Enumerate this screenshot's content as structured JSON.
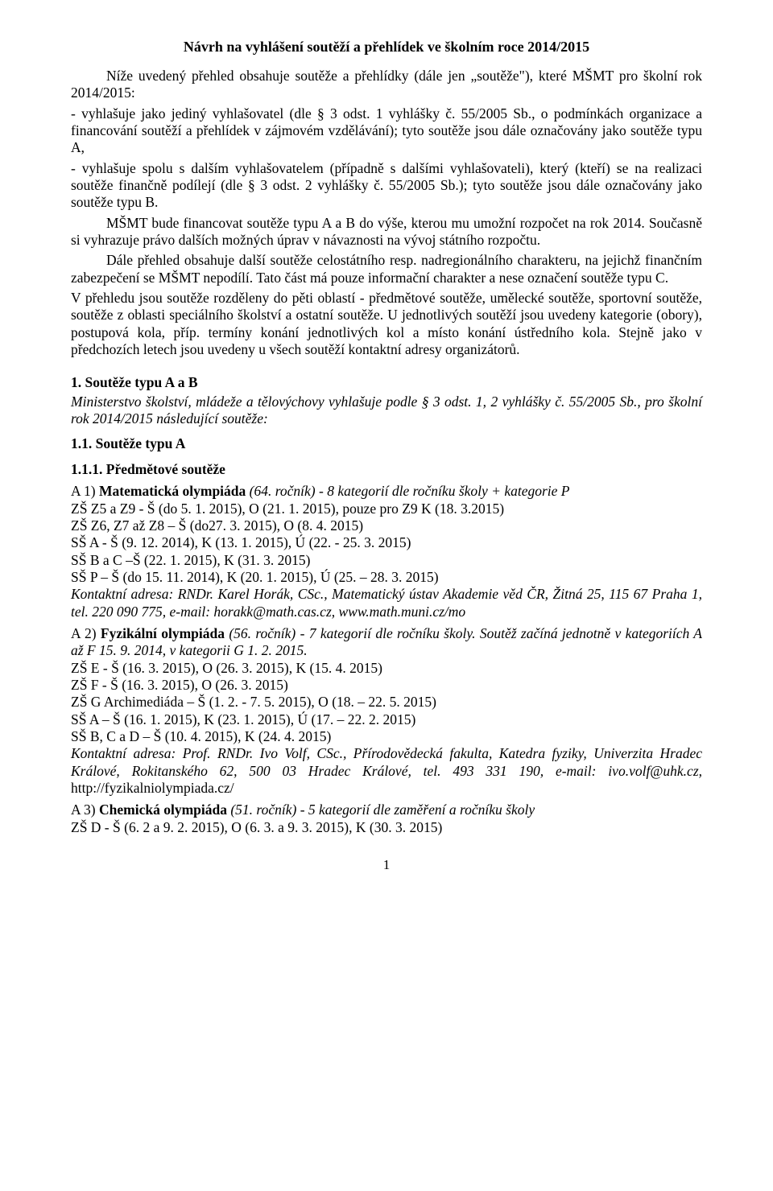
{
  "title": "Návrh na vyhlášení soutěží a přehlídek ve školním roce 2014/2015",
  "intro_p1": "Níže uvedený přehled obsahuje soutěže a přehlídky (dále jen „soutěže\"), které MŠMT pro školní rok 2014/2015:",
  "intro_p2": "- vyhlašuje jako jediný vyhlašovatel (dle § 3 odst. 1 vyhlášky č. 55/2005 Sb., o podmínkách organizace a financování soutěží a přehlídek v zájmovém vzdělávání); tyto soutěže jsou dále označovány jako soutěže typu A,",
  "intro_p3": "- vyhlašuje spolu s dalším vyhlašovatelem (případně s dalšími vyhlašovateli), který (kteří) se na realizaci soutěže finančně podílejí (dle § 3 odst. 2 vyhlášky č. 55/2005 Sb.); tyto soutěže jsou dále označovány jako soutěže typu B.",
  "intro_p4": "MŠMT bude financovat soutěže typu A a B do výše, kterou mu umožní rozpočet na rok 2014. Současně si vyhrazuje právo dalších možných úprav v návaznosti na vývoj státního rozpočtu.",
  "intro_p5": "Dále přehled obsahuje další soutěže celostátního resp. nadregionálního charakteru, na jejichž finančním zabezpečení se MŠMT nepodílí. Tato část má pouze informační charakter a nese označení soutěže typu C.",
  "intro_p6": "V přehledu jsou soutěže rozděleny do pěti oblastí - předmětové soutěže, umělecké soutěže, sportovní soutěže, soutěže z oblasti speciálního školství a ostatní soutěže. U jednotlivých soutěží jsou uvedeny kategorie (obory), postupová kola, příp. termíny konání jednotlivých kol a místo konání ústředního kola. Stejně jako v předchozích letech jsou uvedeny u všech soutěží kontaktní adresy organizátorů.",
  "s1_head": "1. Soutěže typu A a B",
  "s1_sub": "Ministerstvo školství, mládeže a tělovýchovy vyhlašuje podle § 3 odst. 1, 2 vyhlášky č. 55/2005 Sb., pro školní rok 2014/2015 následující soutěže:",
  "s11_head": "1.1.   Soutěže typu A",
  "s111_head": "1.1.1. Předmětové soutěže",
  "a1_lead": "A 1) ",
  "a1_bold": "Matematická olympiáda",
  "a1_rest": " (64. ročník) - 8 kategorií dle ročníku školy + kategorie P",
  "a1_l1": "ZŠ  Z5 a Z9 - Š (do 5. 1. 2015), O (21. 1. 2015), pouze pro Z9 K (18. 3.2015)",
  "a1_l2": "ZŠ  Z6, Z7 až Z8 – Š (do27. 3. 2015), O (8. 4. 2015)",
  "a1_l3": "SŠ A - Š (9. 12. 2014), K (13. 1. 2015), Ú (22. - 25. 3. 2015)",
  "a1_l4": "SŠ B a C –Š (22. 1. 2015), K (31. 3. 2015)",
  "a1_l5": "SŠ P – Š (do 15. 11. 2014), K (20. 1. 2015), Ú (25. – 28. 3. 2015)",
  "a1_contact": "Kontaktní adresa: RNDr. Karel Horák, CSc., Matematický ústav Akademie věd ČR, Žitná 25, 115 67 Praha 1, tel. 220 090 775, e-mail: horakk@math.cas.cz, www.math.muni.cz/mo",
  "a2_lead": "A 2) ",
  "a2_bold": "Fyzikální olympiáda",
  "a2_rest": " (56. ročník) - 7 kategorií dle ročníku školy. Soutěž začíná jednotně v kategoriích A až F 15. 9. 2014, v kategorii G 1. 2. 2015.",
  "a2_l1": "ZŠ E - Š (16. 3. 2015), O (26. 3. 2015), K (15. 4. 2015)",
  "a2_l2": "ZŠ F - Š (16. 3. 2015), O (26. 3. 2015)",
  "a2_l3": "ZŠ G Archimediáda – Š (1. 2. - 7. 5. 2015), O (18. – 22. 5. 2015)",
  "a2_l4": "SŠ A – Š (16. 1. 2015), K (23. 1. 2015), Ú (17. – 22. 2. 2015)",
  "a2_l5": "SŠ B, C a D – Š (10. 4. 2015), K (24. 4. 2015)",
  "a2_contact_a": "Kontaktní adresa: Prof. RNDr. Ivo Volf, CSc., Přírodovědecká fakulta, Katedra fyziky, Univerzita Hradec Králové, Rokitanského 62, 500 03 Hradec Králové, tel. 493 331 190, e-mail: ivo.volf@uhk.cz, ",
  "a2_contact_b": "http://fyzikalniolympiada.cz/",
  "a3_lead": "A 3) ",
  "a3_bold": "Chemická olympiáda",
  "a3_rest": " (51. ročník) - 5 kategorií dle zaměření a ročníku školy",
  "a3_l1": "ZŠ D - Š (6. 2 a 9. 2. 2015), O (6. 3. a 9. 3. 2015), K (30. 3. 2015)",
  "page_number": "1"
}
